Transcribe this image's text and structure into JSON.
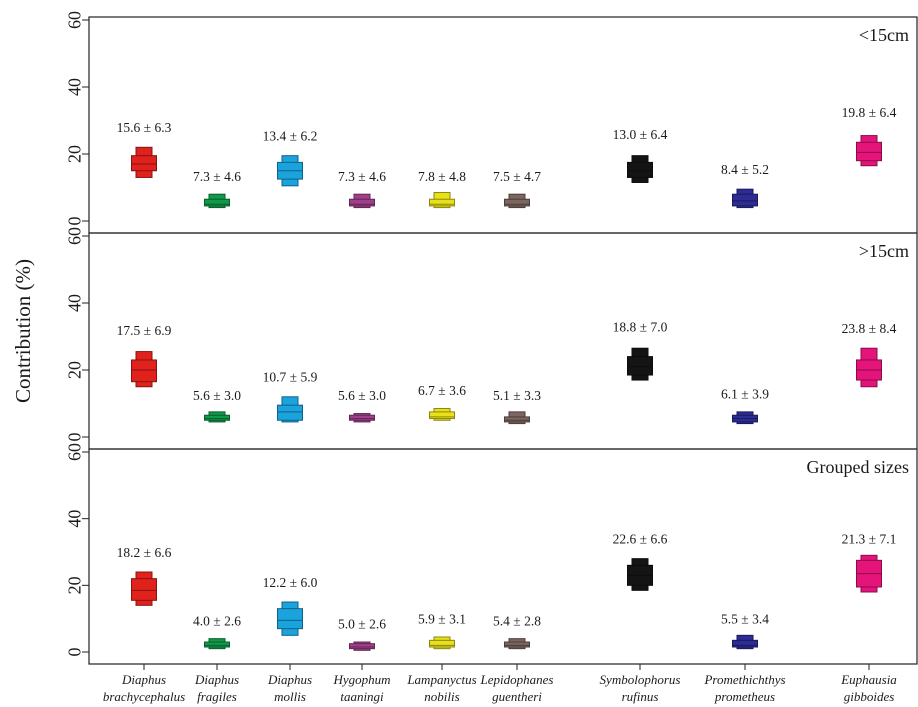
{
  "chart_data": {
    "type": "boxplot",
    "ylabel": "Contribution (%)",
    "ylim": [
      0,
      60
    ],
    "yticks": [
      0,
      20,
      40,
      60
    ],
    "grid": false,
    "categories": [
      {
        "line1": "Diaphus",
        "line2": "brachycephalus",
        "color": "#e0211c"
      },
      {
        "line1": "Diaphus",
        "line2": "fragiles",
        "color": "#0f9a4a"
      },
      {
        "line1": "Diaphus",
        "line2": "mollis",
        "color": "#1aa3dc"
      },
      {
        "line1": "Hygophum",
        "line2": "taaningi",
        "color": "#a0408a"
      },
      {
        "line1": "Lampanyctus",
        "line2": "nobilis",
        "color": "#e8e019"
      },
      {
        "line1": "Lepidophanes",
        "line2": "guentheri",
        "color": "#7d6660"
      },
      {
        "line1": "Symbolophorus",
        "line2": "rufinus",
        "color": "#141414"
      },
      {
        "line1": "Promethichthys",
        "line2": "prometheus",
        "color": "#2c2c94"
      },
      {
        "line1": "Euphausia",
        "line2": "gibboides",
        "color": "#e4147a"
      }
    ],
    "panels": [
      {
        "label": "<15cm",
        "values": [
          {
            "label": "15.6 ± 6.3",
            "min": 13,
            "q1": 15,
            "med": 17,
            "q3": 19.5,
            "max": 22,
            "labelY": 26.5
          },
          {
            "label": "7.3 ± 4.6",
            "min": 4,
            "q1": 4.5,
            "med": 5,
            "q3": 6.5,
            "max": 8,
            "labelY": 12
          },
          {
            "label": "13.4 ± 6.2",
            "min": 10.5,
            "q1": 12.5,
            "med": 15,
            "q3": 17.5,
            "max": 19.5,
            "labelY": 24
          },
          {
            "label": "7.3 ± 4.6",
            "min": 4,
            "q1": 4.5,
            "med": 5,
            "q3": 6.5,
            "max": 8,
            "labelY": 12
          },
          {
            "label": "7.8 ± 4.8",
            "min": 4,
            "q1": 4.5,
            "med": 5,
            "q3": 6.5,
            "max": 8.5,
            "labelY": 12
          },
          {
            "label": "7.5 ± 4.7",
            "min": 4,
            "q1": 4.5,
            "med": 5,
            "q3": 6.5,
            "max": 8,
            "labelY": 12
          },
          {
            "label": "13.0 ± 6.4",
            "min": 11.5,
            "q1": 13,
            "med": 15,
            "q3": 17.5,
            "max": 19.5,
            "labelY": 24.5
          },
          {
            "label": "8.4 ± 5.2",
            "min": 4,
            "q1": 4.5,
            "med": 6,
            "q3": 8,
            "max": 9.5,
            "labelY": 14
          },
          {
            "label": "19.8 ± 6.4",
            "min": 16.5,
            "q1": 18,
            "med": 20.5,
            "q3": 23.5,
            "max": 25.5,
            "labelY": 31
          }
        ]
      },
      {
        "label": ">15cm",
        "values": [
          {
            "label": "17.5 ± 6.9",
            "min": 15,
            "q1": 16.5,
            "med": 20,
            "q3": 23,
            "max": 25.5,
            "labelY": 30.5
          },
          {
            "label": "5.6 ± 3.0",
            "min": 4.5,
            "q1": 5,
            "med": 5.5,
            "q3": 6.5,
            "max": 7.5,
            "labelY": 11
          },
          {
            "label": "10.7 ± 5.9",
            "min": 4.5,
            "q1": 5,
            "med": 7.5,
            "q3": 9.5,
            "max": 12,
            "labelY": 16.5
          },
          {
            "label": "5.6 ± 3.0",
            "min": 4.5,
            "q1": 5,
            "med": 5.5,
            "q3": 6.5,
            "max": 7,
            "labelY": 11
          },
          {
            "label": "6.7 ± 3.6",
            "min": 5,
            "q1": 5.5,
            "med": 6,
            "q3": 7.5,
            "max": 8.5,
            "labelY": 12.5
          },
          {
            "label": "5.1 ± 3.3",
            "min": 4,
            "q1": 4.5,
            "med": 5,
            "q3": 6,
            "max": 7.5,
            "labelY": 11
          },
          {
            "label": "18.8 ± 7.0",
            "min": 17,
            "q1": 18.5,
            "med": 21,
            "q3": 24,
            "max": 26.5,
            "labelY": 31.5
          },
          {
            "label": "6.1 ± 3.9",
            "min": 4,
            "q1": 4.5,
            "med": 5.5,
            "q3": 6.5,
            "max": 7.5,
            "labelY": 11.5
          },
          {
            "label": "23.8 ± 8.4",
            "min": 15,
            "q1": 17,
            "med": 20,
            "q3": 23,
            "max": 26.5,
            "labelY": 31
          }
        ]
      },
      {
        "label": "Grouped sizes",
        "values": [
          {
            "label": "18.2 ± 6.6",
            "min": 14,
            "q1": 15.5,
            "med": 18.5,
            "q3": 22,
            "max": 24,
            "labelY": 28.5
          },
          {
            "label": "4.0 ± 2.6",
            "min": 1,
            "q1": 1.5,
            "med": 2,
            "q3": 3,
            "max": 4,
            "labelY": 8
          },
          {
            "label": "12.2 ± 6.0",
            "min": 5,
            "q1": 7,
            "med": 9.5,
            "q3": 13,
            "max": 15,
            "labelY": 19.5
          },
          {
            "label": "5.0 ± 2.6",
            "min": 0.5,
            "q1": 1,
            "med": 1.5,
            "q3": 2.5,
            "max": 3,
            "labelY": 7
          },
          {
            "label": "5.9 ± 3.1",
            "min": 1,
            "q1": 1.5,
            "med": 2,
            "q3": 3.5,
            "max": 4.5,
            "labelY": 8.5
          },
          {
            "label": "5.4 ± 2.8",
            "min": 1,
            "q1": 1.5,
            "med": 2,
            "q3": 3,
            "max": 4,
            "labelY": 8
          },
          {
            "label": "22.6 ± 6.6",
            "min": 18.5,
            "q1": 20,
            "med": 23,
            "q3": 26,
            "max": 28,
            "labelY": 32.5
          },
          {
            "label": "5.5 ± 3.4",
            "min": 1,
            "q1": 1.5,
            "med": 2,
            "q3": 3.5,
            "max": 5,
            "labelY": 8.5
          },
          {
            "label": "21.3 ± 7.1",
            "min": 18,
            "q1": 19.5,
            "med": 23.5,
            "q3": 27.5,
            "max": 29,
            "labelY": 32.5
          }
        ]
      }
    ]
  }
}
